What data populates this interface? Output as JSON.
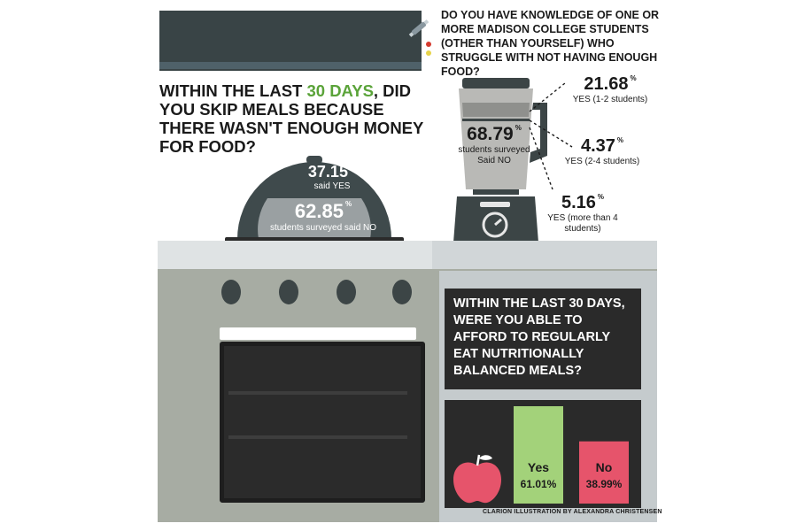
{
  "colors": {
    "accent_green": "#5aa339",
    "bar_yes": "#a3d27a",
    "bar_no": "#e6546b",
    "dark_panel": "#2a2a2a",
    "stove": "#a7aca3"
  },
  "blender_question": {
    "text": "DO YOU HAVE KNOWLEDGE OF ONE OR MORE MADISON COLLEGE STUDENTS (OTHER THAN YOURSELF) WHO STRUGGLE WITH NOT HAVING ENOUGH FOOD?"
  },
  "skip_meals_question": {
    "part1": "WITHIN THE LAST ",
    "highlight": "30 DAYS",
    "part2": ", DID YOU SKIP MEALS BECAUSE THERE WASN'T ENOUGH MONEY FOR FOOD?"
  },
  "balanced_question": {
    "text": "WITHIN THE LAST 30 DAYS, WERE YOU ABLE TO AFFORD TO REGULARLY EAT NUTRITIONALLY BALANCED MEALS?"
  },
  "credit": "CLARION ILLUSTRATION BY ALEXANDRA CHRISTENSEN",
  "icons": [
    "satellite-icon",
    "apple-icon",
    "blender-icon",
    "food-cloche-icon",
    "stove-knob-icon"
  ],
  "chart_data": [
    {
      "type": "pie",
      "question": "DO YOU HAVE KNOWLEDGE OF ONE OR MORE MADISON COLLEGE STUDENTS (OTHER THAN YOURSELF) WHO STRUGGLE WITH NOT HAVING ENOUGH FOOD?",
      "slices": [
        {
          "value": "68.79",
          "pct_sign": "%",
          "label": "students surveyed Said NO"
        },
        {
          "value": "21.68",
          "pct_sign": "%",
          "label": "YES (1-2 students)"
        },
        {
          "value": "4.37",
          "pct_sign": "%",
          "label": "YES (2-4 students)"
        },
        {
          "value": "5.16",
          "pct_sign": "%",
          "label": "YES (more than 4 students)"
        }
      ]
    },
    {
      "type": "pie",
      "question": "WITHIN THE LAST 30 DAYS, DID YOU SKIP MEALS BECAUSE THERE WASN'T ENOUGH MONEY FOR FOOD?",
      "slices": [
        {
          "value": "37.15",
          "pct_sign": "%",
          "label": "said YES"
        },
        {
          "value": "62.85",
          "pct_sign": "%",
          "label": "students surveyed said NO"
        }
      ]
    },
    {
      "type": "bar",
      "question": "WITHIN THE LAST 30 DAYS, WERE YOU ABLE TO AFFORD TO REGULARLY EAT NUTRITIONALLY BALANCED MEALS?",
      "categories": [
        "Yes",
        "No"
      ],
      "values": [
        61.01,
        38.99
      ],
      "value_labels": [
        "61.01%",
        "38.99%"
      ],
      "colors": [
        "#a3d27a",
        "#e6546b"
      ]
    }
  ]
}
